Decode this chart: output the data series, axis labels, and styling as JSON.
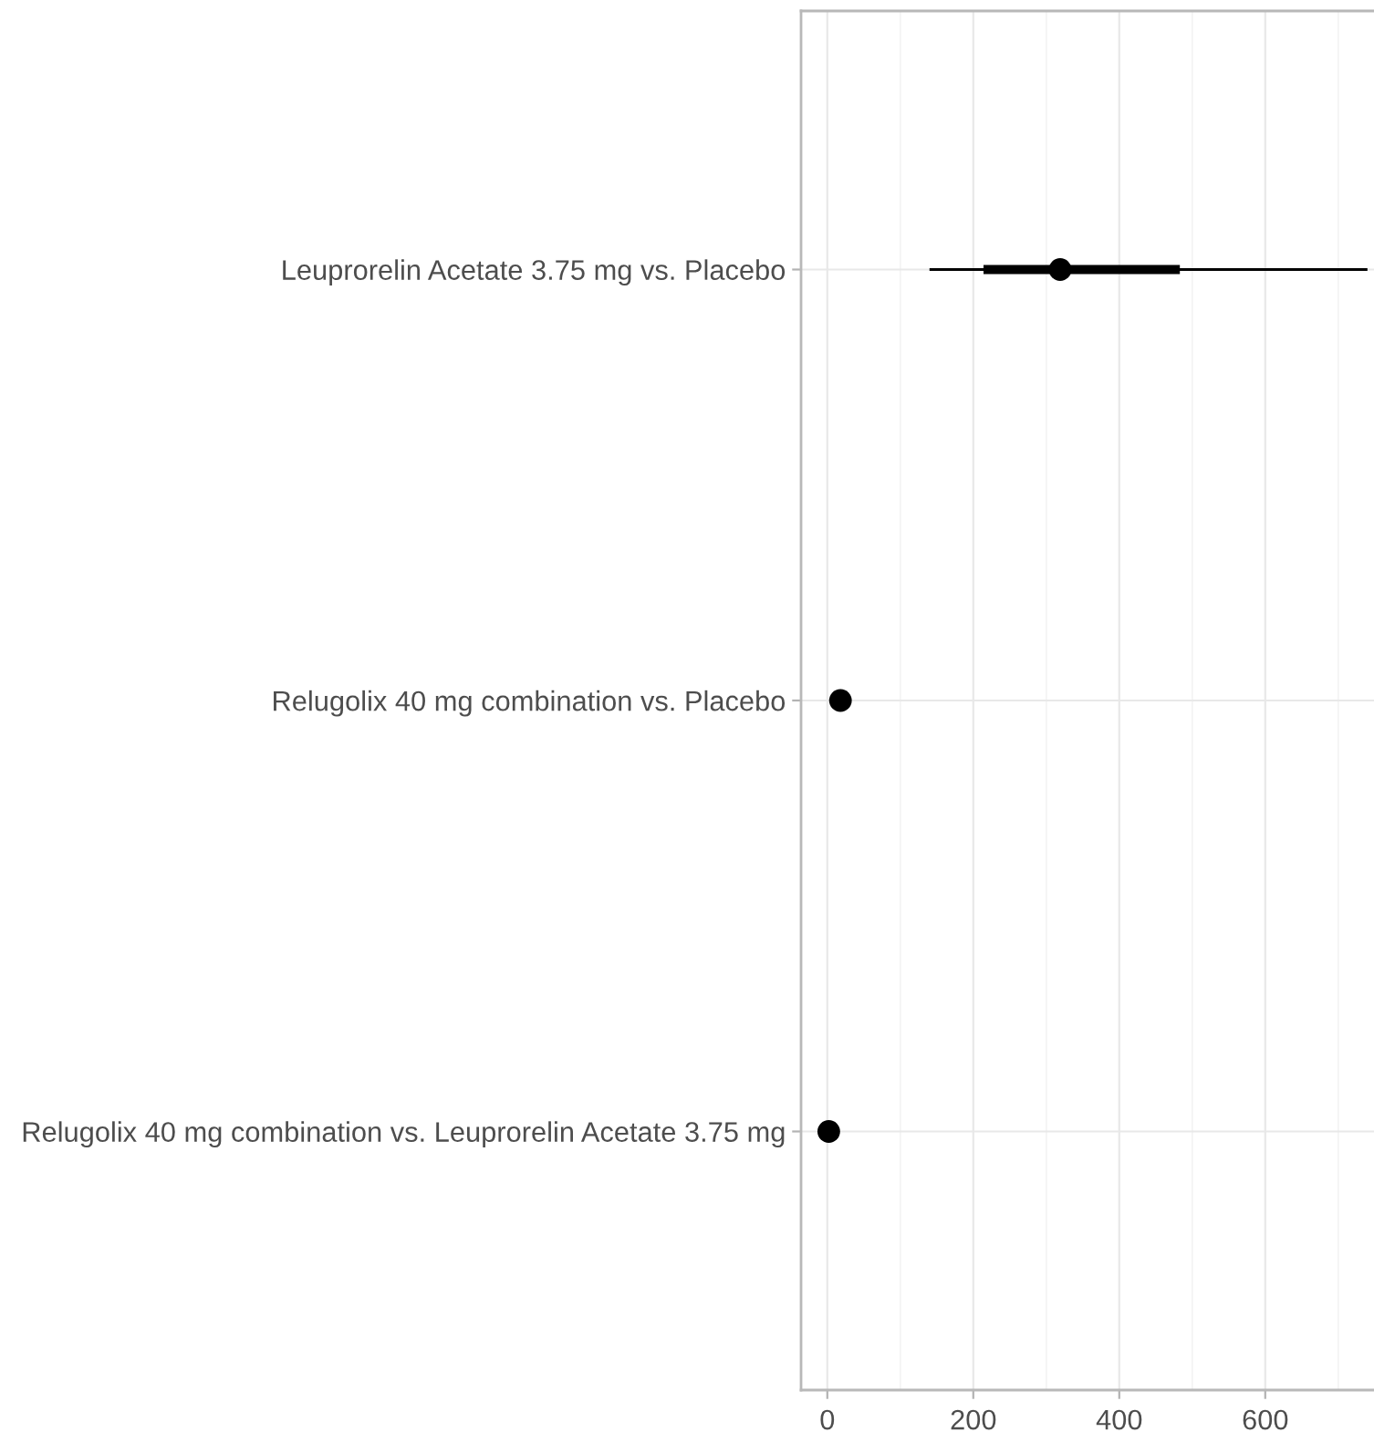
{
  "chart_data": {
    "type": "scatter",
    "orientation": "horizontal",
    "categories": [
      "Leuprorelin Acetate 3.75 mg vs. Placebo",
      "Relugolix 40 mg combination vs. Placebo",
      "Relugolix 40 mg combination vs. Leuprorelin Acetate 3.75 mg"
    ],
    "series": [
      {
        "color": "#000000",
        "values": [
          319,
          18,
          2
        ],
        "errors": [
          [
            140,
            740
          ],
          null,
          null
        ]
      },
      {
        "type": "bar",
        "color": "#000000",
        "values": [
          269,
          null,
          null
        ],
        "base": [
          214,
          null,
          null
        ]
      }
    ],
    "xlim": [
      -36,
      749
    ],
    "xticks": [
      0,
      {
        "value": 100,
        "label": null
      },
      200,
      {
        "value": 300,
        "label": null
      },
      400,
      {
        "value": 500,
        "label": null
      },
      600,
      {
        "value": 700,
        "label": null
      }
    ],
    "grid": true,
    "marker": "circle"
  }
}
